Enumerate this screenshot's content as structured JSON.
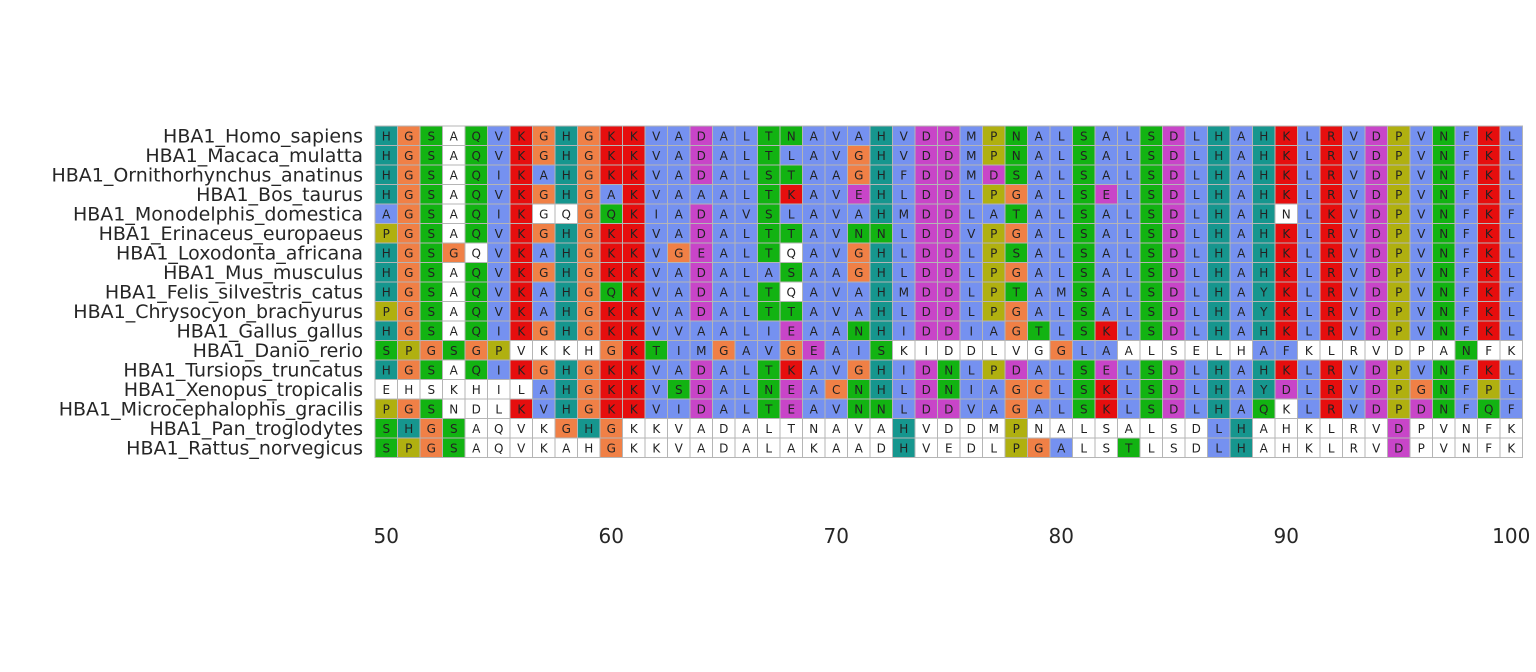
{
  "chart_data": {
    "type": "heatmap",
    "title": "",
    "xlabel": "",
    "ylabel": "",
    "position_start": 50,
    "position_end": 100,
    "xticks": [
      50,
      60,
      70,
      80,
      90,
      100
    ],
    "grid": false,
    "colors": {
      "A": "#7591f0",
      "C": "#f08046",
      "D": "#c845c8",
      "E": "#c845c8",
      "F": "#7591f0",
      "G": "#f08046",
      "H": "#16968e",
      "I": "#7591f0",
      "K": "#e60e0e",
      "L": "#7591f0",
      "M": "#7591f0",
      "N": "#12b312",
      "P": "#b0b010",
      "Q": "#12b312",
      "R": "#e60e0e",
      "S": "#12b312",
      "T": "#12b312",
      "V": "#7591f0",
      "W": "#7591f0",
      "Y": "#16968e",
      "none": "#ffffff"
    },
    "sequences": [
      {
        "name": "HBA1_Homo_sapiens",
        "seq": "HGSAQVKGHGKKVADALTNAVAHVDDMPNALSALSDLHAHKLRVDPVNFKL",
        "colored": "111011111111111111111111111111111111111111111111111"
      },
      {
        "name": "HBA1_Macaca_mulatta",
        "seq": "HGSAQVKGHGKKVADALTLAVGHVDDMPNALSALSDLHAHKLRVDPVNFKL",
        "colored": "111011111111111111111111111111111111111111111111111"
      },
      {
        "name": "HBA1_Ornithorhynchus_anatinus",
        "seq": "HGSAQIKAHGKKVADALSTAAGHFDDMDSALSALSDLHAHKLRVDPVNFKL",
        "colored": "111011111111111111111111111111111111111111111111111"
      },
      {
        "name": "HBA1_Bos_taurus",
        "seq": "HGSAQVKGHGAKVAAALTKAVEHLDDLPGALSELSDLHAHKLRVDPVNFKL",
        "colored": "111011111111111111111111111111111111111111111111111"
      },
      {
        "name": "HBA1_Monodelphis_domestica",
        "seq": "AGSAQIKGQGQKIADAVSLAVAHMDDLATALSALSDLHAHNLKVDPVNFKF",
        "colored": "111011100111111111111111111111111111111101111111111"
      },
      {
        "name": "HBA1_Erinaceus_europaeus",
        "seq": "PGSAQVKGHGKKVADALTTAVNNLDDVPGALSALSDLHAHKLRVDPVNFKL",
        "colored": "111011111111111111111111111111111111111111111111111"
      },
      {
        "name": "HBA1_Loxodonta_africana",
        "seq": "HGSGQVKAHGKKVGEALTQAVGHLDDLPSALSALSDLHAHKLRVDPVNFKL",
        "colored": "111101111111111111011111111111111111111111111111111"
      },
      {
        "name": "HBA1_Mus_musculus",
        "seq": "HGSAQVKGHGKKVADALASAAGHLDDLPGALSALSDLHAHKLRVDPVNFKL",
        "colored": "111011111111111111111111111111111111111111111111111"
      },
      {
        "name": "HBA1_Felis_silvestris_catus",
        "seq": "HGSAQVKAHGQKVADALTQAVAHMDDLPTAMSALSDLHAYKLRVDPVNFKF",
        "colored": "111011111111111111011111111111111111111111111111111"
      },
      {
        "name": "HBA1_Chrysocyon_brachyurus",
        "seq": "PGSAQVKAHGKKVADALTTAVAHLDDLPGALSALSDLHAYKLRVDPVNFKL",
        "colored": "111011111111111111111111111111111111111111111111111"
      },
      {
        "name": "HBA1_Gallus_gallus",
        "seq": "HGSAQIKGHGKKVVAALIEAANHIDDIAGTLSKLSDLHAHKLRVDPVNFKL",
        "colored": "111011111111111111111111111111111111111111111111111"
      },
      {
        "name": "HBA1_Danio_rerio",
        "seq": "SPGSGPVKKHGKTIMGAVGEAISKIDDLVGGLAALSELHAFKLRVDPANFK",
        "colored": "111111000011111111111110000000111000000110000000100"
      },
      {
        "name": "HBA1_Tursiops_truncatus",
        "seq": "HGSAQIKGHGKKVADALTKAVGHIDNLPDALSELSDLHAHKLRVDPVNFKL",
        "colored": "111011111111111111111111111111111111111111111111111"
      },
      {
        "name": "HBA1_Xenopus_tropicalis",
        "seq": "EHSKHILAHGKKVSDALNEACNHLDNIAGCLSKLSDLHAYDLRVDPGNFPL",
        "colored": "000000011111111111111111111111111111111111111111111"
      },
      {
        "name": "HBA1_Microcephalophis_gracilis",
        "seq": "PGSNDLKVHGKKVIDALTEAVNNLDDVAGALSKLSDLHAQKLRVDPDNFQF",
        "colored": "111000111111111111111111111111111111111101111111111"
      },
      {
        "name": "HBA1_Pan_troglodytes",
        "seq": "SHGSAQVKGHGKKVADALTNAVAHVDDMPNALSALSDLHAHKLRVDPVNFK",
        "colored": "111100001110000000000001000010000000011000000100000"
      },
      {
        "name": "HBA1_Rattus_norvegicus",
        "seq": "SPGSAQVKAHGKKVADALAKAADHVEDLPGALSTLSDLHAHKLRVDPVNFK",
        "colored": "111100000010000000000001000011100100011000000100000"
      }
    ]
  }
}
